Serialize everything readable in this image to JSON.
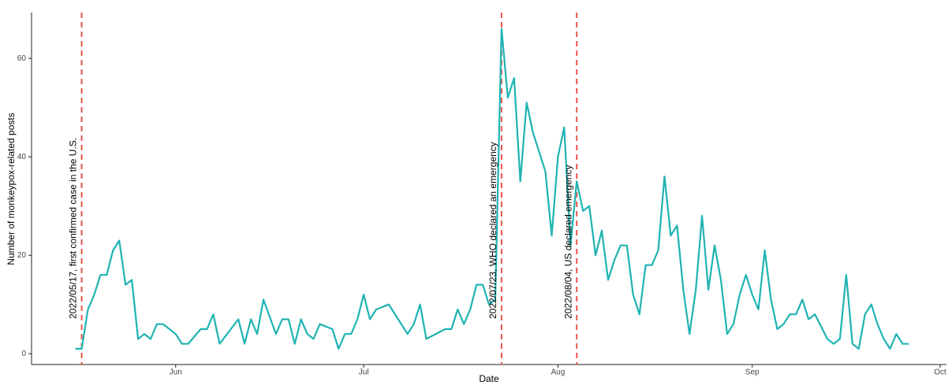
{
  "chart_data": {
    "type": "line",
    "x_label": "Date",
    "y_label": "Number of monkeypox-related posts",
    "x": [
      "2022-05-16",
      "2022-05-17",
      "2022-05-18",
      "2022-05-19",
      "2022-05-20",
      "2022-05-21",
      "2022-05-22",
      "2022-05-23",
      "2022-05-24",
      "2022-05-25",
      "2022-05-26",
      "2022-05-27",
      "2022-05-28",
      "2022-05-29",
      "2022-05-30",
      "2022-05-31",
      "2022-06-01",
      "2022-06-02",
      "2022-06-03",
      "2022-06-05",
      "2022-06-06",
      "2022-06-07",
      "2022-06-08",
      "2022-06-11",
      "2022-06-12",
      "2022-06-13",
      "2022-06-14",
      "2022-06-15",
      "2022-06-17",
      "2022-06-18",
      "2022-06-19",
      "2022-06-20",
      "2022-06-21",
      "2022-06-22",
      "2022-06-23",
      "2022-06-24",
      "2022-06-26",
      "2022-06-27",
      "2022-06-28",
      "2022-06-29",
      "2022-06-30",
      "2022-07-01",
      "2022-07-02",
      "2022-07-03",
      "2022-07-05",
      "2022-07-08",
      "2022-07-09",
      "2022-07-10",
      "2022-07-11",
      "2022-07-14",
      "2022-07-15",
      "2022-07-16",
      "2022-07-17",
      "2022-07-18",
      "2022-07-19",
      "2022-07-20",
      "2022-07-21",
      "2022-07-22",
      "2022-07-23",
      "2022-07-24",
      "2022-07-25",
      "2022-07-26",
      "2022-07-27",
      "2022-07-28",
      "2022-07-30",
      "2022-07-31",
      "2022-08-01",
      "2022-08-02",
      "2022-08-03",
      "2022-08-04",
      "2022-08-05",
      "2022-08-06",
      "2022-08-07",
      "2022-08-08",
      "2022-08-09",
      "2022-08-10",
      "2022-08-11",
      "2022-08-12",
      "2022-08-13",
      "2022-08-14",
      "2022-08-15",
      "2022-08-16",
      "2022-08-17",
      "2022-08-18",
      "2022-08-19",
      "2022-08-20",
      "2022-08-21",
      "2022-08-22",
      "2022-08-23",
      "2022-08-24",
      "2022-08-25",
      "2022-08-26",
      "2022-08-27",
      "2022-08-28",
      "2022-08-29",
      "2022-08-30",
      "2022-08-31",
      "2022-09-01",
      "2022-09-02",
      "2022-09-03",
      "2022-09-04",
      "2022-09-05",
      "2022-09-06",
      "2022-09-07",
      "2022-09-08",
      "2022-09-09",
      "2022-09-10",
      "2022-09-11",
      "2022-09-13",
      "2022-09-14",
      "2022-09-15",
      "2022-09-16",
      "2022-09-17",
      "2022-09-18",
      "2022-09-19",
      "2022-09-20",
      "2022-09-21",
      "2022-09-22",
      "2022-09-23",
      "2022-09-24",
      "2022-09-25",
      "2022-09-26"
    ],
    "series": [
      {
        "color": "#1fb3b3",
        "values": [
          1,
          1,
          9,
          12,
          16,
          16,
          21,
          23,
          14,
          15,
          3,
          4,
          3,
          6,
          6,
          5,
          4,
          2,
          2,
          5,
          5,
          8,
          2,
          7,
          2,
          7,
          4,
          11,
          4,
          7,
          7,
          2,
          7,
          4,
          3,
          6,
          5,
          1,
          4,
          4,
          7,
          12,
          7,
          9,
          10,
          4,
          6,
          10,
          3,
          5,
          5,
          9,
          6,
          9,
          14,
          14,
          10,
          11,
          66,
          52,
          56,
          35,
          51,
          45,
          37,
          24,
          40,
          46,
          22,
          35,
          29,
          30,
          20,
          25,
          15,
          19,
          22,
          22,
          12,
          8,
          18,
          18,
          21,
          36,
          24,
          26,
          13,
          4,
          13,
          28,
          13,
          22,
          15,
          4,
          6,
          12,
          16,
          12,
          9,
          21,
          11,
          5,
          6,
          8,
          8,
          11,
          7,
          8,
          3,
          2,
          3,
          16,
          2,
          1,
          8,
          10,
          6,
          3,
          1,
          4,
          2,
          2
        ]
      }
    ],
    "annotations": [
      {
        "x": "2022-05-17",
        "text": "2022/05/17, first confirmed case in the U.S."
      },
      {
        "x": "2022-07-23",
        "text": "2022/07/23, WHO declared an emergency"
      },
      {
        "x": "2022-08-04",
        "text": "2022/08/04, US declared emergency"
      }
    ],
    "annotation_color": "#e8554e",
    "xlim": [
      "2022-05-09",
      "2022-10-02"
    ],
    "xticks": [
      {
        "value": "2022-06-01",
        "label": "Jun"
      },
      {
        "value": "2022-07-01",
        "label": "Jul"
      },
      {
        "value": "2022-08-01",
        "label": "Aug"
      },
      {
        "value": "2022-09-01",
        "label": "Sep"
      },
      {
        "value": "2022-10-01",
        "label": "Oct"
      }
    ],
    "ylim": [
      -2.2,
      69.3
    ],
    "yticks": [
      0,
      20,
      40,
      60
    ]
  }
}
